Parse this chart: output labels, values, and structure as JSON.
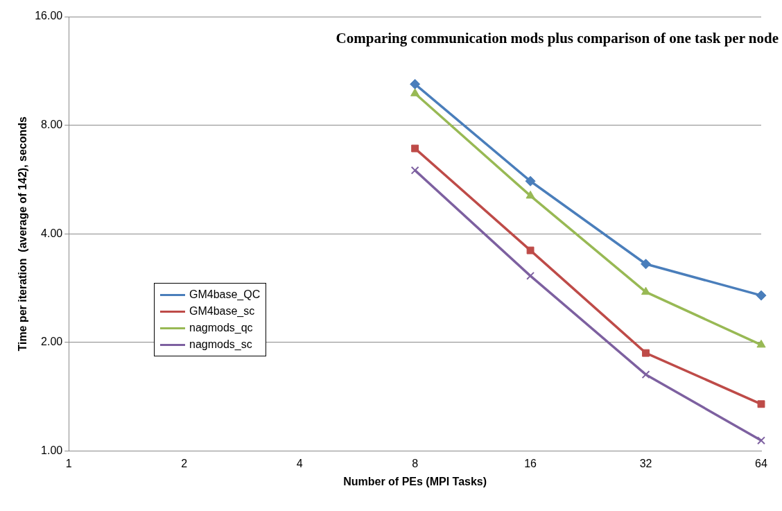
{
  "chart_data": {
    "type": "line",
    "title": "Comparing communication mods plus comparison of one task per node",
    "xlabel": "Number of PEs (MPI Tasks)",
    "ylabel": "Time per iteration  (average of 142), seconds",
    "x": [
      8,
      16,
      32,
      64
    ],
    "series": [
      {
        "name": "GM4base_QC",
        "color": "#4a7ebb",
        "marker": "diamond",
        "values": [
          10.4,
          5.6,
          3.3,
          2.7
        ]
      },
      {
        "name": "GM4base_sc",
        "color": "#be4b48",
        "marker": "square",
        "values": [
          6.9,
          3.6,
          1.87,
          1.35
        ]
      },
      {
        "name": "nagmods_qc",
        "color": "#98b954",
        "marker": "triangle",
        "values": [
          9.8,
          5.1,
          2.76,
          1.97
        ]
      },
      {
        "name": "nagmods_sc",
        "color": "#7d60a0",
        "marker": "cross",
        "values": [
          6.0,
          3.06,
          1.63,
          1.07
        ]
      }
    ],
    "log": "xy",
    "xlim": [
      1,
      64
    ],
    "xticks": [
      1,
      2,
      4,
      8,
      16,
      32,
      64
    ],
    "ylim": [
      1,
      16
    ],
    "yticks": [
      {
        "value": 1,
        "label": "1.00"
      },
      {
        "value": 2,
        "label": "2.00"
      },
      {
        "value": 4,
        "label": "4.00"
      },
      {
        "value": 8,
        "label": "8.00"
      },
      {
        "value": 16,
        "label": "16.00"
      }
    ],
    "grid": "y",
    "legend": "left",
    "line_style": "solid"
  }
}
